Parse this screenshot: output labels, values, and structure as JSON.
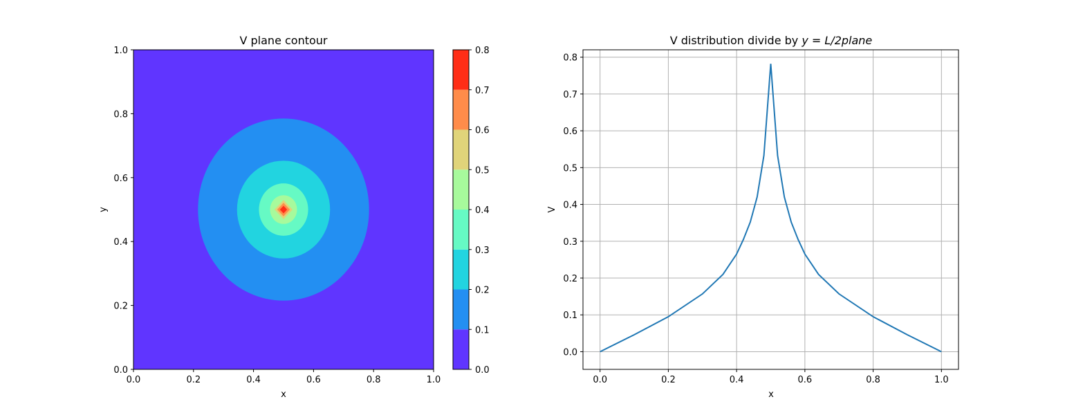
{
  "chart_data": [
    {
      "type": "contour",
      "title": "V plane contour",
      "xlabel": "x",
      "ylabel": "y",
      "xlim": [
        0.0,
        1.0
      ],
      "ylim": [
        0.0,
        1.0
      ],
      "xticks": [
        "0.0",
        "0.2",
        "0.4",
        "0.6",
        "0.8",
        "1.0"
      ],
      "yticks": [
        "0.0",
        "0.2",
        "0.4",
        "0.6",
        "0.8",
        "1.0"
      ],
      "grid": false,
      "colormap": "rainbow",
      "background_level_color": "#6035ff",
      "levels": [
        {
          "range": [
            0.0,
            0.1
          ],
          "color": "#6035ff",
          "region": null
        },
        {
          "range": [
            0.1,
            0.2
          ],
          "color": "#238ff2",
          "center": [
            0.5,
            0.5
          ],
          "semi_axes": [
            0.285,
            0.285
          ]
        },
        {
          "range": [
            0.2,
            0.3
          ],
          "color": "#22d4e0",
          "center": [
            0.5,
            0.5
          ],
          "semi_axes": [
            0.155,
            0.153
          ]
        },
        {
          "range": [
            0.3,
            0.4
          ],
          "color": "#66fac4",
          "center": [
            0.5,
            0.5
          ],
          "semi_axes": [
            0.082,
            0.082
          ]
        },
        {
          "range": [
            0.4,
            0.5
          ],
          "color": "#a7fa9c",
          "center": [
            0.5,
            0.5
          ],
          "semi_axes": [
            0.045,
            0.045
          ]
        },
        {
          "range": [
            0.5,
            0.6
          ],
          "color": "#e0d47a",
          "center": [
            0.5,
            0.5
          ],
          "semi_axes": [
            0.03,
            0.03
          ]
        },
        {
          "range": [
            0.6,
            0.7
          ],
          "color": "#ff8c4a",
          "center": [
            0.5,
            0.5
          ],
          "semi_axes": [
            0.021,
            0.021
          ]
        },
        {
          "range": [
            0.7,
            0.8
          ],
          "color": "#ff2e17",
          "center": [
            0.5,
            0.5
          ],
          "semi_axes": [
            0.012,
            0.012
          ]
        }
      ],
      "colorbar": {
        "ticks": [
          "0.0",
          "0.1",
          "0.2",
          "0.3",
          "0.4",
          "0.5",
          "0.6",
          "0.7",
          "0.8"
        ],
        "range": [
          0.0,
          0.8
        ],
        "colors": [
          "#6035ff",
          "#238ff2",
          "#22d4e0",
          "#66fac4",
          "#a7fa9c",
          "#e0d47a",
          "#ff8c4a",
          "#ff2e17"
        ]
      }
    },
    {
      "type": "line",
      "title": "V distribution divide by y = L/2plane",
      "xlabel": "x",
      "ylabel": "V",
      "xlim": [
        -0.05,
        1.05
      ],
      "ylim": [
        -0.048,
        0.82
      ],
      "xticks": [
        "0.0",
        "0.2",
        "0.4",
        "0.6",
        "0.8",
        "1.0"
      ],
      "yticks": [
        "0.0",
        "0.1",
        "0.2",
        "0.3",
        "0.4",
        "0.5",
        "0.6",
        "0.7",
        "0.8"
      ],
      "grid": true,
      "series": [
        {
          "color": "#1f77b4",
          "x": [
            0.0,
            0.1,
            0.2,
            0.3,
            0.36,
            0.4,
            0.42,
            0.44,
            0.46,
            0.48,
            0.5,
            0.52,
            0.54,
            0.56,
            0.58,
            0.6,
            0.64,
            0.7,
            0.8,
            0.9,
            1.0
          ],
          "y": [
            0.0,
            0.046,
            0.095,
            0.157,
            0.21,
            0.265,
            0.305,
            0.352,
            0.42,
            0.533,
            0.782,
            0.533,
            0.42,
            0.352,
            0.305,
            0.265,
            0.21,
            0.157,
            0.095,
            0.046,
            0.0
          ]
        }
      ]
    }
  ]
}
